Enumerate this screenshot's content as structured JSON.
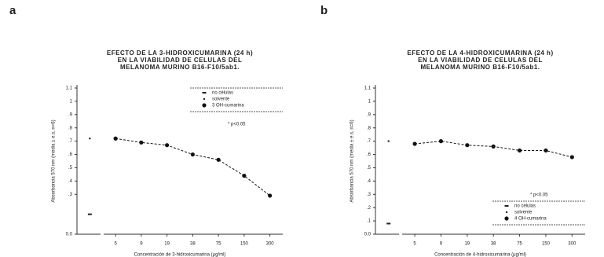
{
  "chart_data": [
    {
      "type": "line",
      "panel": "a",
      "title": [
        "EFECTO DE LA 3-HIDROXICUMARINA (24 h)",
        "EN LA VIABILIDAD DE CELULAS DEL",
        "MELANOMA MURINO B16-F10/5ab1."
      ],
      "y_label": "Absorbancia 570 nm (media ± e.s, n=6)",
      "x_label": "Concentración de 3-hidroxicumarina (μg/ml)",
      "categories": [
        null,
        "5",
        "9",
        "19",
        "38",
        "75",
        "150",
        "300"
      ],
      "series": [
        {
          "name": "no células",
          "color": "#222222",
          "marker": "dash",
          "values": [
            0.15,
            null,
            null,
            null,
            null,
            null,
            null,
            null
          ]
        },
        {
          "name": "solvente",
          "color": "#222222",
          "marker": "dot",
          "values": [
            0.72,
            null,
            null,
            null,
            null,
            null,
            null,
            null
          ]
        },
        {
          "name": "3 OH-cumarina",
          "color": "#111111",
          "marker": "circle",
          "values": [
            null,
            0.72,
            0.69,
            0.67,
            0.6,
            0.56,
            0.44,
            0.29
          ]
        }
      ],
      "annotation": "* p<0.05",
      "legend": "upper right",
      "ylim": [
        0,
        1.1
      ],
      "yticks": [
        {
          "value": 0,
          "label": "0.0"
        },
        {
          "value": 0.3,
          "label": ".3"
        },
        {
          "value": 0.4,
          "label": ".4"
        },
        {
          "value": 0.5,
          "label": ".5"
        },
        {
          "value": 0.6,
          "label": ".6"
        },
        {
          "value": 0.7,
          "label": ".7"
        },
        {
          "value": 0.8,
          "label": ".8"
        },
        {
          "value": 0.9,
          "label": ".9"
        },
        1.0,
        1.1
      ]
    },
    {
      "type": "line",
      "panel": "b",
      "title": [
        "EFECTO DE LA 4-HIDROXICUMARINA (24 h)",
        "EN LA VIABILIDAD DE CELULAS DEL",
        "MELANOMA MURINO B16-F10/5ab1."
      ],
      "y_label": "Absorbancia 570 nm (media ± e.s, n=6)",
      "x_label": "Concentración de 4-hidroxicumarina (μg/ml)",
      "categories": [
        null,
        "5",
        "9",
        "19",
        "38",
        "75",
        "150",
        "300"
      ],
      "series": [
        {
          "name": "no células",
          "color": "#222222",
          "marker": "dash",
          "values": [
            0.08,
            null,
            null,
            null,
            null,
            null,
            null,
            null
          ]
        },
        {
          "name": "solvente",
          "color": "#222222",
          "marker": "dot",
          "values": [
            0.7,
            null,
            null,
            null,
            null,
            null,
            null,
            null
          ]
        },
        {
          "name": "4 OH-cumarina",
          "color": "#111111",
          "marker": "circle",
          "values": [
            null,
            0.68,
            0.7,
            0.67,
            0.66,
            0.63,
            0.63,
            0.58
          ]
        }
      ],
      "annotation": "* p<0.05",
      "legend": "lower right",
      "ylim": [
        0,
        1.1
      ],
      "yticks": [
        {
          "value": 0,
          "label": "0.0"
        },
        {
          "value": 0.1,
          "label": ".1"
        },
        {
          "value": 0.2,
          "label": ".2"
        },
        {
          "value": 0.3,
          "label": ".3"
        },
        {
          "value": 0.4,
          "label": ".4"
        },
        {
          "value": 0.5,
          "label": ".5"
        },
        {
          "value": 0.6,
          "label": ".6"
        },
        {
          "value": 0.7,
          "label": ".7"
        },
        {
          "value": 0.8,
          "label": ".8"
        },
        {
          "value": 0.9,
          "label": ".9"
        },
        1.0,
        1.1
      ]
    }
  ]
}
